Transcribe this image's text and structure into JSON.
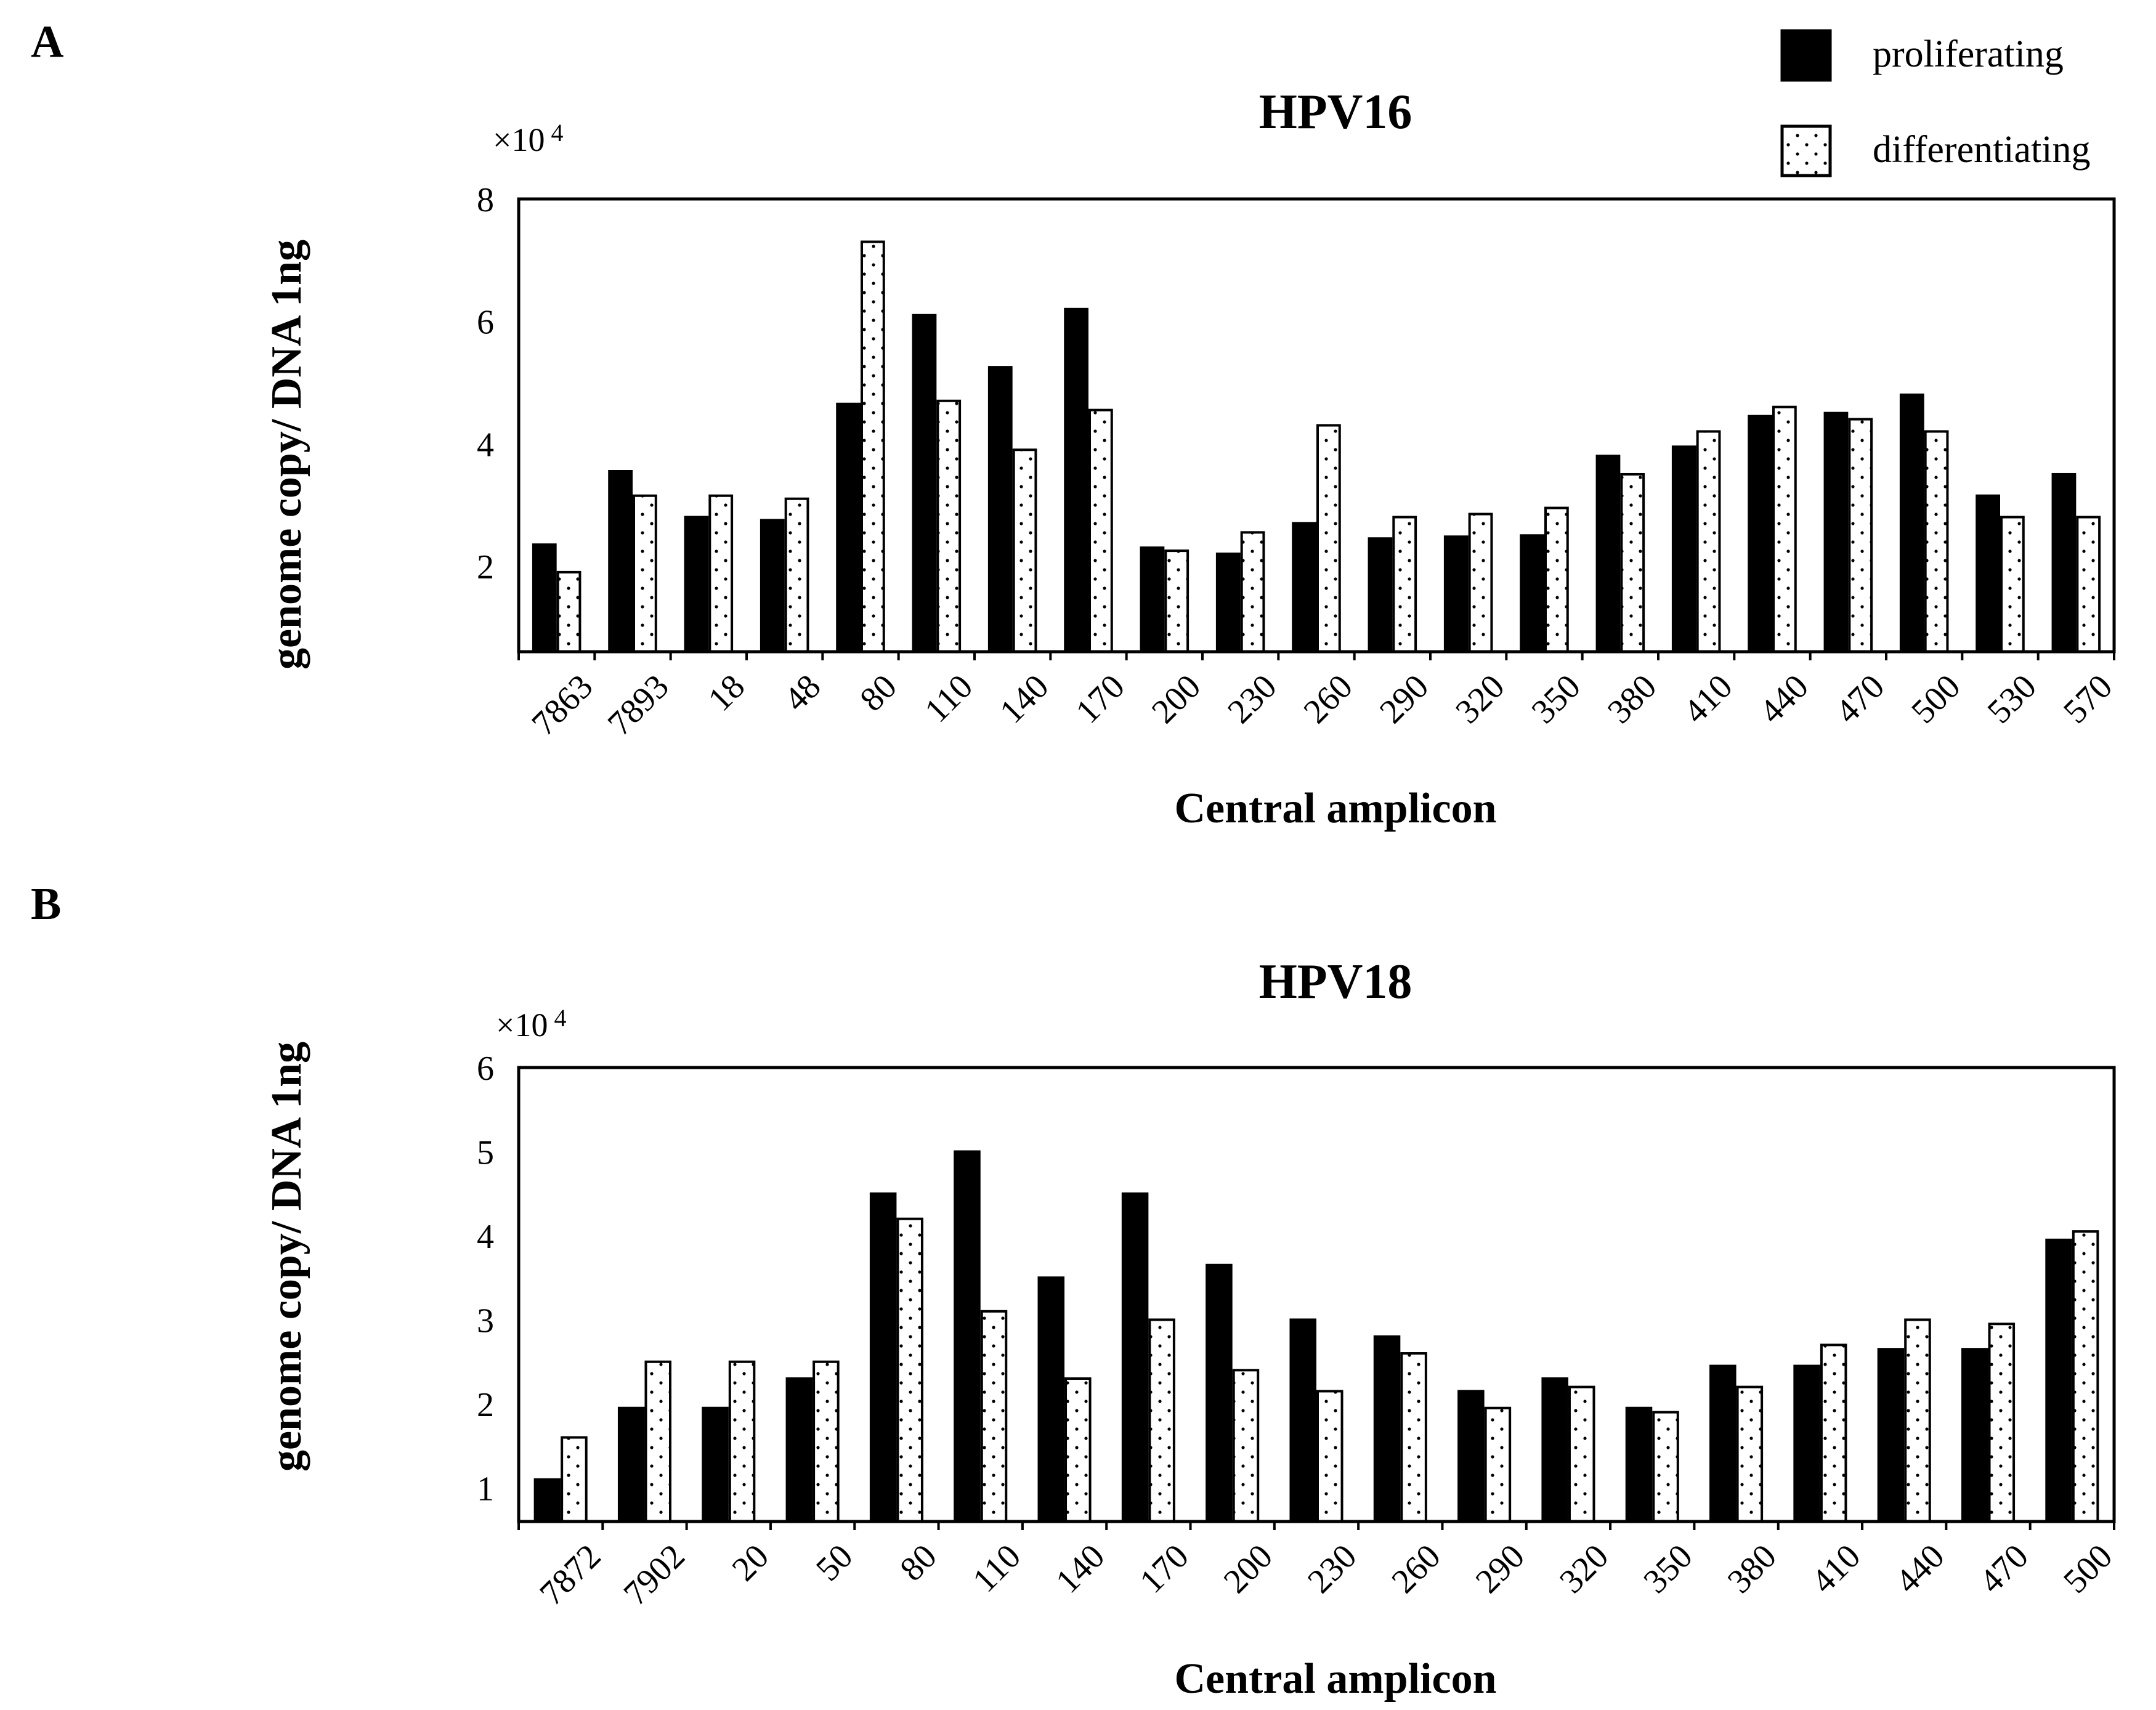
{
  "legend": {
    "series": [
      {
        "name": "proliferating",
        "fill": "#000000",
        "pattern": "solid"
      },
      {
        "name": "differentiating",
        "fill": "#ffffff",
        "pattern": "dotted"
      }
    ]
  },
  "chart_data": [
    {
      "panel": "A",
      "type": "bar",
      "title": "HPV16",
      "xlabel": "Central amplicon",
      "ylabel": "genome copy/ DNA 1ng",
      "multiplier_base": "×10",
      "multiplier_exp": "4",
      "ylim": [
        0.6,
        8
      ],
      "yticks": [
        2,
        4,
        6,
        8
      ],
      "categories": [
        "7863",
        "7893",
        "18",
        "48",
        "80",
        "110",
        "140",
        "170",
        "200",
        "230",
        "260",
        "290",
        "320",
        "350",
        "380",
        "410",
        "440",
        "470",
        "500",
        "530",
        "570"
      ],
      "series": [
        {
          "name": "proliferating",
          "values": [
            2.35,
            3.55,
            2.8,
            2.75,
            4.65,
            6.1,
            5.25,
            6.2,
            2.3,
            2.2,
            2.7,
            2.45,
            2.48,
            2.5,
            3.8,
            3.95,
            4.45,
            4.5,
            4.8,
            3.15,
            3.5
          ]
        },
        {
          "name": "differentiating",
          "values": [
            1.9,
            3.15,
            3.15,
            3.1,
            7.3,
            4.7,
            3.9,
            4.55,
            2.25,
            2.55,
            4.3,
            2.8,
            2.85,
            2.95,
            3.5,
            4.2,
            4.6,
            4.4,
            4.2,
            2.8,
            2.8
          ]
        }
      ]
    },
    {
      "panel": "B",
      "type": "bar",
      "title": "HPV18",
      "xlabel": "Central amplicon",
      "ylabel": "genome copy/ DNA 1ng",
      "multiplier_base": "×10",
      "multiplier_exp": "4",
      "ylim": [
        0.6,
        6
      ],
      "yticks": [
        1,
        2,
        3,
        4,
        5,
        6
      ],
      "categories": [
        "7872",
        "7902",
        "20",
        "50",
        "80",
        "110",
        "140",
        "170",
        "200",
        "230",
        "260",
        "290",
        "320",
        "350",
        "380",
        "410",
        "440",
        "470",
        "500"
      ],
      "series": [
        {
          "name": "proliferating",
          "values": [
            1.1,
            1.95,
            1.95,
            2.3,
            4.5,
            5.0,
            3.5,
            4.5,
            3.65,
            3.0,
            2.8,
            2.15,
            2.3,
            1.95,
            2.45,
            2.45,
            2.65,
            2.65,
            3.95
          ]
        },
        {
          "name": "differentiating",
          "values": [
            1.6,
            2.5,
            2.5,
            2.5,
            4.2,
            3.1,
            2.3,
            3.0,
            2.4,
            2.15,
            2.6,
            1.95,
            2.2,
            1.9,
            2.2,
            2.7,
            3.0,
            2.95,
            4.05
          ]
        }
      ]
    }
  ]
}
